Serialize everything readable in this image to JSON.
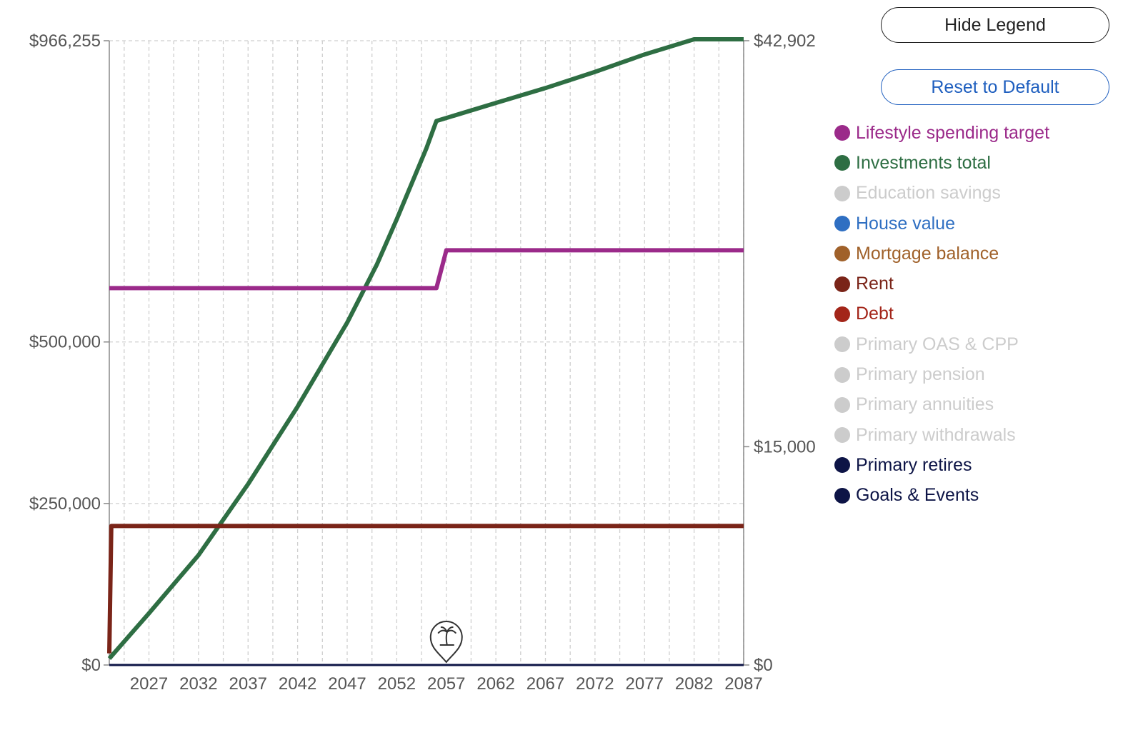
{
  "buttons": {
    "hide_legend": "Hide Legend",
    "reset_default": "Reset to Default"
  },
  "legend": [
    {
      "label": "Lifestyle spending target",
      "color": "#9b2a8a",
      "active": true
    },
    {
      "label": "Investments total",
      "color": "#2e6e43",
      "active": true
    },
    {
      "label": "Education savings",
      "color": "#cccccc",
      "active": false
    },
    {
      "label": "House value",
      "color": "#2f6fc2",
      "active": true
    },
    {
      "label": "Mortgage balance",
      "color": "#a0612a",
      "active": true
    },
    {
      "label": "Rent",
      "color": "#7a2418",
      "active": true
    },
    {
      "label": "Debt",
      "color": "#a32519",
      "active": true
    },
    {
      "label": "Primary OAS & CPP",
      "color": "#cccccc",
      "active": false
    },
    {
      "label": "Primary pension",
      "color": "#cccccc",
      "active": false
    },
    {
      "label": "Primary annuities",
      "color": "#cccccc",
      "active": false
    },
    {
      "label": "Primary withdrawals",
      "color": "#cccccc",
      "active": false
    },
    {
      "label": "Primary retires",
      "color": "#0d1446",
      "active": true
    },
    {
      "label": "Goals & Events",
      "color": "#0d1446",
      "active": true
    }
  ],
  "chart_data": {
    "type": "line",
    "x_range": [
      2023,
      2087
    ],
    "x_ticks": [
      2027,
      2032,
      2037,
      2042,
      2047,
      2052,
      2057,
      2062,
      2067,
      2072,
      2077,
      2082,
      2087
    ],
    "y_left": {
      "range": [
        0,
        966255
      ],
      "ticks": [
        0,
        250000,
        500000,
        966255
      ],
      "tick_labels": [
        "$0",
        "$250,000",
        "$500,000",
        "$966,255"
      ]
    },
    "y_right": {
      "range": [
        0,
        42902
      ],
      "ticks": [
        0,
        15000,
        42902
      ],
      "tick_labels": [
        "$0",
        "$15,000",
        "$42,902"
      ]
    },
    "grid": true,
    "legend_position": "right",
    "series": [
      {
        "name": "Investments total",
        "axis": "left",
        "color": "#2e6e43",
        "points": [
          [
            2023,
            10000
          ],
          [
            2027,
            80000
          ],
          [
            2032,
            170000
          ],
          [
            2037,
            280000
          ],
          [
            2042,
            400000
          ],
          [
            2047,
            530000
          ],
          [
            2050,
            620000
          ],
          [
            2052,
            690000
          ],
          [
            2055,
            800000
          ],
          [
            2056,
            842000
          ],
          [
            2062,
            870000
          ],
          [
            2067,
            893000
          ],
          [
            2072,
            918000
          ],
          [
            2077,
            945000
          ],
          [
            2082,
            975000
          ],
          [
            2086,
            1003000
          ],
          [
            2087,
            988000
          ]
        ]
      },
      {
        "name": "Lifestyle spending target",
        "axis": "right",
        "color": "#9b2a8a",
        "points": [
          [
            2023,
            25900
          ],
          [
            2056,
            25900
          ],
          [
            2057,
            28500
          ],
          [
            2087,
            28500
          ]
        ]
      },
      {
        "name": "Rent",
        "axis": "right",
        "color": "#7a2418",
        "points": [
          [
            2023,
            800
          ],
          [
            2023.2,
            9550
          ],
          [
            2087,
            9550
          ]
        ]
      },
      {
        "name": "Goals & Events",
        "axis": "left",
        "color": "#0d1446",
        "points": [
          [
            2023,
            0
          ],
          [
            2087,
            0
          ]
        ]
      }
    ],
    "markers": [
      {
        "name": "Primary retires",
        "x": 2057,
        "icon": "palm-tree-pin-icon"
      }
    ]
  }
}
